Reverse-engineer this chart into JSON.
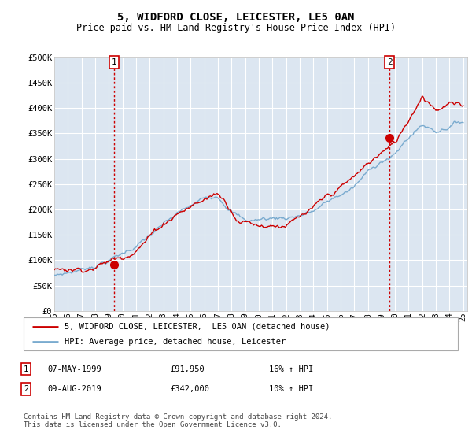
{
  "title": "5, WIDFORD CLOSE, LEICESTER, LE5 0AN",
  "subtitle": "Price paid vs. HM Land Registry's House Price Index (HPI)",
  "ylim": [
    0,
    500000
  ],
  "yticks": [
    0,
    50000,
    100000,
    150000,
    200000,
    250000,
    300000,
    350000,
    400000,
    450000,
    500000
  ],
  "ytick_labels": [
    "£0",
    "£50K",
    "£100K",
    "£150K",
    "£200K",
    "£250K",
    "£300K",
    "£350K",
    "£400K",
    "£450K",
    "£500K"
  ],
  "transaction1_date": 1999.37,
  "transaction1_price": 91950,
  "transaction2_date": 2019.59,
  "transaction2_price": 342000,
  "red_line_color": "#cc0000",
  "blue_line_color": "#7aabcf",
  "plot_bg_color": "#dce6f1",
  "grid_color": "#ffffff",
  "legend_label_red": "5, WIDFORD CLOSE, LEICESTER,  LE5 0AN (detached house)",
  "legend_label_blue": "HPI: Average price, detached house, Leicester",
  "table_row1": [
    "1",
    "07-MAY-1999",
    "£91,950",
    "16% ↑ HPI"
  ],
  "table_row2": [
    "2",
    "09-AUG-2019",
    "£342,000",
    "10% ↑ HPI"
  ],
  "footnote": "Contains HM Land Registry data © Crown copyright and database right 2024.\nThis data is licensed under the Open Government Licence v3.0."
}
